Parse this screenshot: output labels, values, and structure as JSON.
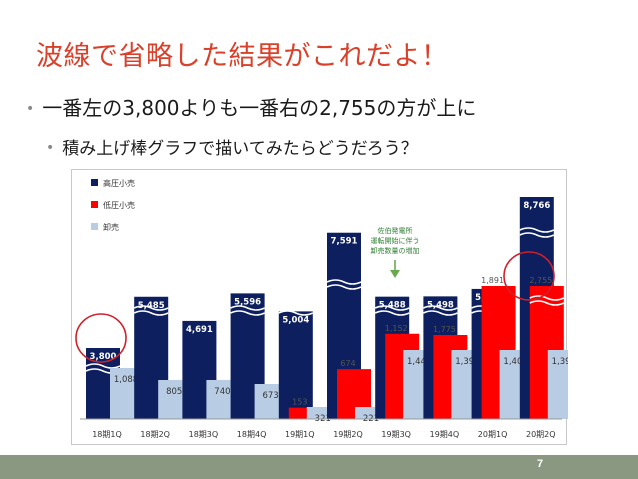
{
  "slide": {
    "title": "波線で省略した結果がこれだよ！",
    "bullet1": "一番左の3,800よりも一番右の2,755の方が上に",
    "bullet2": "積み上げ棒グラフで描いてみたらどうだろう？",
    "page_number": "7"
  },
  "colors": {
    "title": "#d9412b",
    "high_voltage": "#0d1f5e",
    "low_voltage": "#ff0000",
    "wholesale": "#b8cce4",
    "highlight_circle": "#d0202a",
    "footer": "#8a9882"
  },
  "chart_data": {
    "type": "bar",
    "subtype": "grouped-overlap with axis break (wavy lines)",
    "categories": [
      "18期1Q",
      "18期2Q",
      "18期3Q",
      "18期4Q",
      "19期1Q",
      "19期2Q",
      "19期3Q",
      "19期4Q",
      "20期1Q",
      "20期2Q"
    ],
    "series": [
      {
        "name": "高圧小売",
        "color": "#0d1f5e",
        "values": [
          3800,
          5485,
          4691,
          5596,
          5004,
          7591,
          5488,
          5498,
          5743,
          8766
        ],
        "labels": [
          "3,800",
          "5,485",
          "4,691",
          "5,596",
          "5,004",
          "7,591",
          "5,488",
          "5,498",
          "5,743",
          "8,766"
        ]
      },
      {
        "name": "低圧小売",
        "color": "#ff0000",
        "values": [
          null,
          null,
          null,
          null,
          153,
          674,
          1152,
          1775,
          1891,
          2755
        ],
        "labels": [
          "",
          "",
          "",
          "",
          "153",
          "674",
          "1,152",
          "1,775",
          "1,891",
          "2,755"
        ]
      },
      {
        "name": "卸売",
        "color": "#b8cce4",
        "values": [
          1088,
          805,
          740,
          673,
          321,
          221,
          1444,
          1396,
          1407,
          1390
        ],
        "labels": [
          "1,088",
          "805",
          "740",
          "673",
          "321",
          "221",
          "1,444",
          "1,396",
          "1,407",
          "1,390"
        ]
      }
    ],
    "annotation": {
      "lines": [
        "佐伯発電所",
        "運転開始に伴う",
        "卸売数量の増加"
      ]
    },
    "highlighted": [
      {
        "category": "18期1Q",
        "series": "高圧小売",
        "value": "3,800"
      },
      {
        "category": "20期2Q",
        "series": "低圧小売",
        "value": "2,755"
      }
    ],
    "legend_position": "top-left",
    "grid": false
  }
}
